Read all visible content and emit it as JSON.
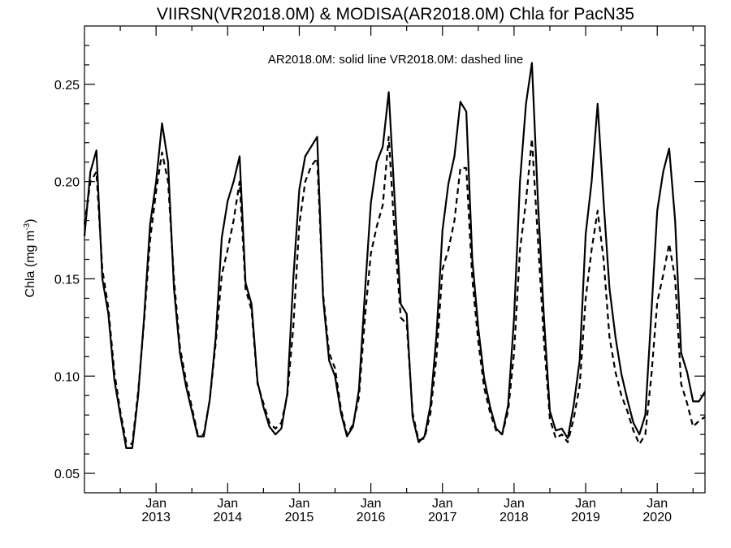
{
  "chart_data": {
    "type": "line",
    "title": "VIIRSN(VR2018.0M) & MODISA(AR2018.0M)  Chla for PacN35",
    "annotation": "AR2018.0M: solid line   VR2018.0M: dashed line",
    "ylabel": {
      "main": "Chla (mg m",
      "sup": "-3",
      "close": ")"
    },
    "ylim": [
      0.04,
      0.28
    ],
    "xlim": [
      2012.0,
      2020.667
    ],
    "grid": false,
    "yticks": [
      {
        "value": 0.05,
        "label": "0.05"
      },
      {
        "value": 0.1,
        "label": "0.10"
      },
      {
        "value": 0.15,
        "label": "0.15"
      },
      {
        "value": 0.2,
        "label": "0.20"
      },
      {
        "value": 0.25,
        "label": "0.25"
      }
    ],
    "xticks": [
      {
        "value": 2013,
        "month": "Jan",
        "year": "2013"
      },
      {
        "value": 2014,
        "month": "Jan",
        "year": "2014"
      },
      {
        "value": 2015,
        "month": "Jan",
        "year": "2015"
      },
      {
        "value": 2016,
        "month": "Jan",
        "year": "2016"
      },
      {
        "value": 2017,
        "month": "Jan",
        "year": "2017"
      },
      {
        "value": 2018,
        "month": "Jan",
        "year": "2018"
      },
      {
        "value": 2019,
        "month": "Jan",
        "year": "2019"
      },
      {
        "value": 2020,
        "month": "Jan",
        "year": "2020"
      }
    ],
    "series": [
      {
        "style": "solid",
        "x": [
          2012.0,
          2012.083,
          2012.167,
          2012.25,
          2012.333,
          2012.417,
          2012.5,
          2012.583,
          2012.667,
          2012.75,
          2012.833,
          2012.917,
          2013.0,
          2013.083,
          2013.167,
          2013.25,
          2013.333,
          2013.417,
          2013.5,
          2013.583,
          2013.667,
          2013.75,
          2013.833,
          2013.917,
          2014.0,
          2014.083,
          2014.167,
          2014.25,
          2014.333,
          2014.417,
          2014.5,
          2014.583,
          2014.667,
          2014.75,
          2014.833,
          2014.917,
          2015.0,
          2015.083,
          2015.167,
          2015.25,
          2015.333,
          2015.417,
          2015.5,
          2015.583,
          2015.667,
          2015.75,
          2015.833,
          2015.917,
          2016.0,
          2016.083,
          2016.167,
          2016.25,
          2016.333,
          2016.417,
          2016.5,
          2016.583,
          2016.667,
          2016.75,
          2016.833,
          2016.917,
          2017.0,
          2017.083,
          2017.167,
          2017.25,
          2017.333,
          2017.417,
          2017.5,
          2017.583,
          2017.667,
          2017.75,
          2017.833,
          2017.917,
          2018.0,
          2018.083,
          2018.167,
          2018.25,
          2018.333,
          2018.417,
          2018.5,
          2018.583,
          2018.667,
          2018.75,
          2018.833,
          2018.917,
          2019.0,
          2019.083,
          2019.167,
          2019.25,
          2019.333,
          2019.417,
          2019.5,
          2019.583,
          2019.667,
          2019.75,
          2019.833,
          2019.917,
          2020.0,
          2020.083,
          2020.167,
          2020.25,
          2020.333,
          2020.417,
          2020.5,
          2020.583,
          2020.667
        ],
        "y": [
          0.172,
          0.205,
          0.216,
          0.15,
          0.132,
          0.098,
          0.08,
          0.063,
          0.063,
          0.09,
          0.13,
          0.178,
          0.2,
          0.23,
          0.21,
          0.145,
          0.112,
          0.095,
          0.082,
          0.069,
          0.069,
          0.088,
          0.12,
          0.171,
          0.19,
          0.2,
          0.213,
          0.148,
          0.137,
          0.097,
          0.084,
          0.074,
          0.07,
          0.073,
          0.091,
          0.15,
          0.196,
          0.213,
          0.218,
          0.223,
          0.14,
          0.108,
          0.1,
          0.081,
          0.069,
          0.074,
          0.093,
          0.143,
          0.189,
          0.21,
          0.218,
          0.246,
          0.19,
          0.137,
          0.132,
          0.079,
          0.066,
          0.069,
          0.085,
          0.121,
          0.175,
          0.199,
          0.213,
          0.241,
          0.236,
          0.16,
          0.125,
          0.099,
          0.084,
          0.073,
          0.07,
          0.085,
          0.13,
          0.2,
          0.24,
          0.261,
          0.19,
          0.13,
          0.082,
          0.072,
          0.073,
          0.068,
          0.085,
          0.108,
          0.173,
          0.2,
          0.24,
          0.19,
          0.145,
          0.12,
          0.101,
          0.088,
          0.076,
          0.07,
          0.08,
          0.132,
          0.185,
          0.205,
          0.217,
          0.18,
          0.112,
          0.102,
          0.087,
          0.087,
          0.092
        ]
      },
      {
        "style": "dashed",
        "x": [
          2012.0,
          2012.083,
          2012.167,
          2012.25,
          2012.333,
          2012.417,
          2012.5,
          2012.583,
          2012.667,
          2012.75,
          2012.833,
          2012.917,
          2013.0,
          2013.083,
          2013.167,
          2013.25,
          2013.333,
          2013.417,
          2013.5,
          2013.583,
          2013.667,
          2013.75,
          2013.833,
          2013.917,
          2014.0,
          2014.083,
          2014.167,
          2014.25,
          2014.333,
          2014.417,
          2014.5,
          2014.583,
          2014.667,
          2014.75,
          2014.833,
          2014.917,
          2015.0,
          2015.083,
          2015.167,
          2015.25,
          2015.333,
          2015.417,
          2015.5,
          2015.583,
          2015.667,
          2015.75,
          2015.833,
          2015.917,
          2016.0,
          2016.083,
          2016.167,
          2016.25,
          2016.333,
          2016.417,
          2016.5,
          2016.583,
          2016.667,
          2016.75,
          2016.833,
          2016.917,
          2017.0,
          2017.083,
          2017.167,
          2017.25,
          2017.333,
          2017.417,
          2017.5,
          2017.583,
          2017.667,
          2017.75,
          2017.833,
          2017.917,
          2018.0,
          2018.083,
          2018.167,
          2018.25,
          2018.333,
          2018.417,
          2018.5,
          2018.583,
          2018.667,
          2018.75,
          2018.833,
          2018.917,
          2019.0,
          2019.083,
          2019.167,
          2019.25,
          2019.333,
          2019.417,
          2019.5,
          2019.583,
          2019.667,
          2019.75,
          2019.833,
          2019.917,
          2020.0,
          2020.083,
          2020.167,
          2020.25,
          2020.333,
          2020.417,
          2020.5,
          2020.583,
          2020.667
        ],
        "y": [
          0.178,
          0.2,
          0.205,
          0.155,
          0.135,
          0.102,
          0.082,
          0.066,
          0.065,
          0.092,
          0.128,
          0.17,
          0.195,
          0.215,
          0.2,
          0.15,
          0.115,
          0.098,
          0.084,
          0.07,
          0.07,
          0.088,
          0.117,
          0.152,
          0.165,
          0.18,
          0.2,
          0.145,
          0.134,
          0.096,
          0.086,
          0.076,
          0.073,
          0.076,
          0.09,
          0.125,
          0.178,
          0.2,
          0.208,
          0.212,
          0.142,
          0.112,
          0.104,
          0.083,
          0.07,
          0.075,
          0.089,
          0.13,
          0.163,
          0.177,
          0.188,
          0.223,
          0.172,
          0.13,
          0.127,
          0.081,
          0.067,
          0.068,
          0.081,
          0.11,
          0.155,
          0.165,
          0.18,
          0.207,
          0.207,
          0.15,
          0.118,
          0.094,
          0.081,
          0.072,
          0.07,
          0.082,
          0.112,
          0.165,
          0.19,
          0.222,
          0.17,
          0.118,
          0.078,
          0.068,
          0.07,
          0.066,
          0.078,
          0.095,
          0.14,
          0.165,
          0.185,
          0.16,
          0.12,
          0.102,
          0.09,
          0.082,
          0.072,
          0.065,
          0.07,
          0.1,
          0.138,
          0.152,
          0.168,
          0.15,
          0.096,
          0.086,
          0.074,
          0.077,
          0.079
        ]
      }
    ]
  }
}
